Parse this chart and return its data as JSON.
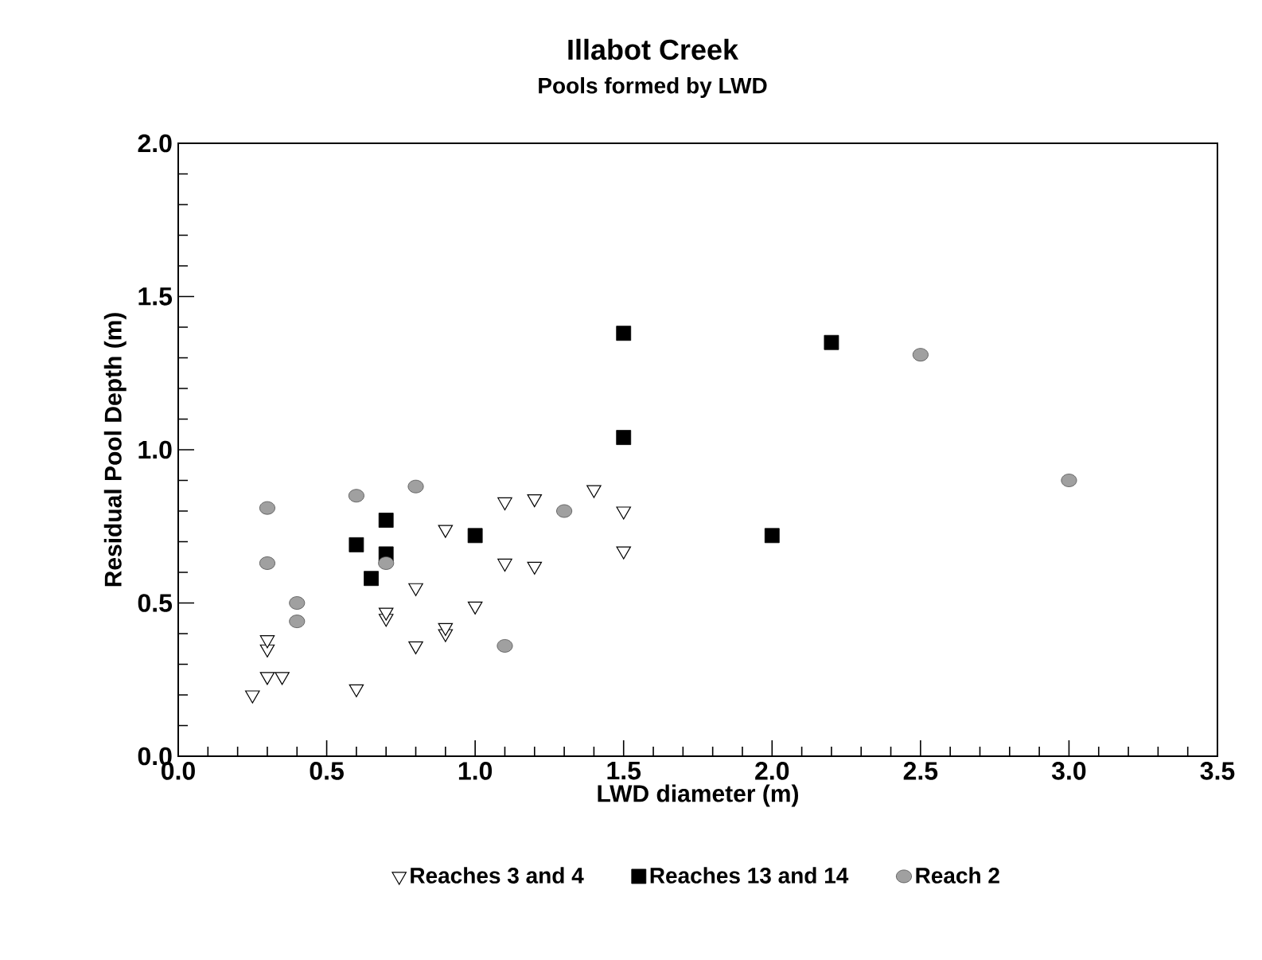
{
  "chart_data": {
    "type": "scatter",
    "title": "Illabot Creek",
    "subtitle": "Pools formed by LWD",
    "xlabel": "LWD diameter (m)",
    "ylabel": "Residual Pool Depth (m)",
    "xlim": [
      0,
      3.5
    ],
    "xticks": [
      {
        "value": 0,
        "label": "0.0"
      },
      0.5,
      {
        "value": 1,
        "label": "1.0"
      },
      1.5,
      {
        "value": 2,
        "label": "2.0"
      },
      2.5,
      {
        "value": 3,
        "label": "3.0"
      },
      3.5
    ],
    "ylim": [
      0,
      2
    ],
    "yticks": [
      {
        "value": 0,
        "label": "0.0"
      },
      0.5,
      {
        "value": 1,
        "label": "1.0"
      },
      1.5,
      {
        "value": 2,
        "label": "2.0"
      }
    ],
    "grid": false,
    "legend": "bottom",
    "series": [
      {
        "name": "Reaches 3 and 4",
        "color": "#ffffff",
        "marker": "triangle",
        "x": [
          0.25,
          0.3,
          0.35,
          0.3,
          0.3,
          0.6,
          0.7,
          0.7,
          0.8,
          0.8,
          0.9,
          0.9,
          0.9,
          1.0,
          1.1,
          1.1,
          1.2,
          1.2,
          1.4,
          1.5,
          1.5
        ],
        "values": [
          0.2,
          0.26,
          0.26,
          0.35,
          0.38,
          0.22,
          0.45,
          0.47,
          0.36,
          0.55,
          0.4,
          0.42,
          0.74,
          0.49,
          0.63,
          0.83,
          0.62,
          0.84,
          0.87,
          0.8,
          0.67
        ]
      },
      {
        "name": "Reaches 13 and 14",
        "color": "#000000",
        "marker": "square",
        "x": [
          0.6,
          0.65,
          0.7,
          0.7,
          1.0,
          1.5,
          1.5,
          2.0,
          2.2
        ],
        "values": [
          0.69,
          0.58,
          0.66,
          0.77,
          0.72,
          1.38,
          1.04,
          0.72,
          1.35
        ]
      },
      {
        "name": "Reach 2",
        "color": "#a0a0a0",
        "marker": "circle",
        "x": [
          0.3,
          0.3,
          0.4,
          0.4,
          0.6,
          0.7,
          0.8,
          1.1,
          1.3,
          2.5,
          3.0
        ],
        "values": [
          0.81,
          0.63,
          0.5,
          0.44,
          0.85,
          0.63,
          0.88,
          0.36,
          0.8,
          1.31,
          0.9
        ]
      }
    ]
  }
}
